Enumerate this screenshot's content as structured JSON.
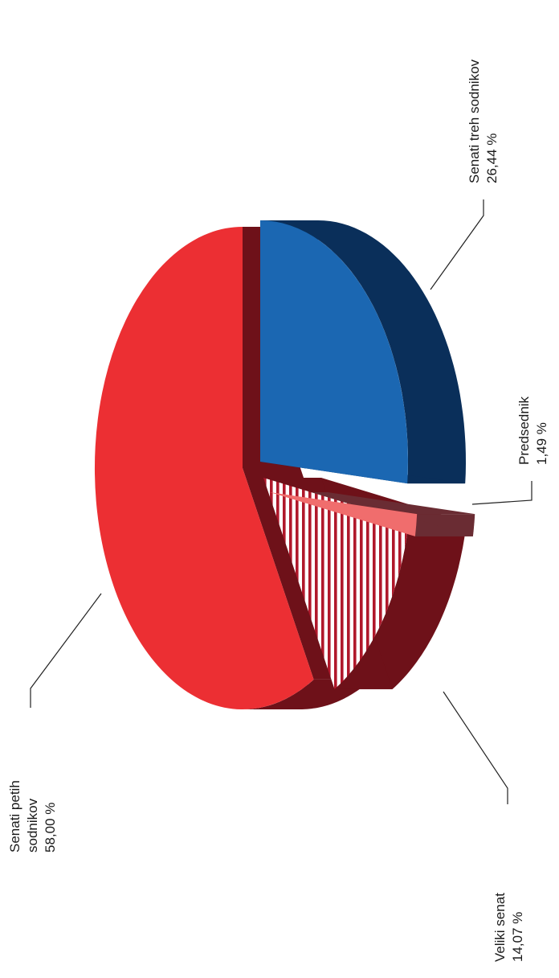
{
  "chart_data": {
    "type": "pie",
    "three_d": true,
    "orientation": "rotated-90-ccw",
    "categories": [
      "Senati treh sodnikov",
      "Predsednik",
      "Veliki senat",
      "Senati petih sodnikov"
    ],
    "values": [
      26.44,
      1.49,
      14.07,
      58.0
    ],
    "value_labels": [
      "26,44 %",
      "1,49 %",
      "14,07 %",
      "58,00 %"
    ],
    "colors": {
      "Senati treh sodnikov": {
        "top": "#1b67b2",
        "side": "#0a2f5a"
      },
      "Predsednik": {
        "top": "#f06d6d",
        "side": "#6a2c33"
      },
      "Veliki senat": {
        "top": "#b0182b",
        "side": "#6e1119",
        "pattern": "stripes"
      },
      "Senati petih sodnikov": {
        "top": "#ec2f33",
        "side": "#6e1119"
      }
    },
    "labels": [
      {
        "name": "Senati treh sodnikov",
        "lines": [
          "Senati treh sodnikov",
          "26,44 %"
        ]
      },
      {
        "name": "Predsednik",
        "lines": [
          "Predsednik",
          "1,49 %"
        ]
      },
      {
        "name": "Veliki senat",
        "lines": [
          "Veliki senat",
          "14,07 %"
        ]
      },
      {
        "name": "Senati petih sodnikov",
        "lines": [
          "Senati petih",
          "sodnikov",
          "58,00 %"
        ]
      }
    ]
  }
}
